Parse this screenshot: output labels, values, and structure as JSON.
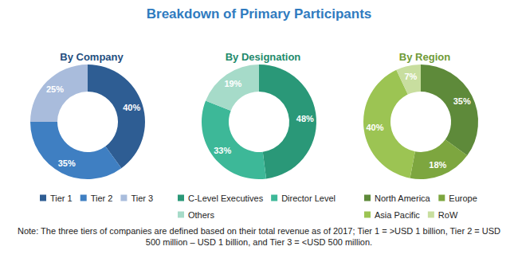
{
  "title": "Breakdown of Primary Participants",
  "note": "Note: The three tiers of companies are defined based on their total revenue as of 2017; Tier 1 = >USD 1 billion, Tier 2 = USD 500 million – USD 1 billion, and Tier 3 = <USD 500 million.",
  "chart_data": [
    {
      "type": "pie",
      "title": "By Company",
      "categories": [
        "Tier 1",
        "Tier 2",
        "Tier 3"
      ],
      "values": [
        40,
        35,
        25
      ],
      "value_labels": [
        "40%",
        "35%",
        "25%"
      ],
      "colors": [
        "#2e5d93",
        "#3f7fc2",
        "#a9bcdc"
      ],
      "data_labels": true,
      "legend": "bottom"
    },
    {
      "type": "pie",
      "title": "By Designation",
      "categories": [
        "C-Level Executives",
        "Director Level",
        "Others"
      ],
      "values": [
        48,
        33,
        19
      ],
      "value_labels": [
        "48%",
        "33%",
        "19%"
      ],
      "colors": [
        "#2a9878",
        "#3db898",
        "#a6dbc9"
      ],
      "data_labels": true,
      "legend": "bottom"
    },
    {
      "type": "pie",
      "title": "By Region",
      "categories": [
        "North America",
        "Europe",
        "Asia Pacific",
        "RoW"
      ],
      "values": [
        35,
        18,
        40,
        7
      ],
      "value_labels": [
        "35%",
        "18%",
        "40%",
        "7%"
      ],
      "colors": [
        "#5e8a3a",
        "#7da63f",
        "#9cc453",
        "#c8de9f"
      ],
      "data_labels": true,
      "legend": "bottom"
    }
  ]
}
